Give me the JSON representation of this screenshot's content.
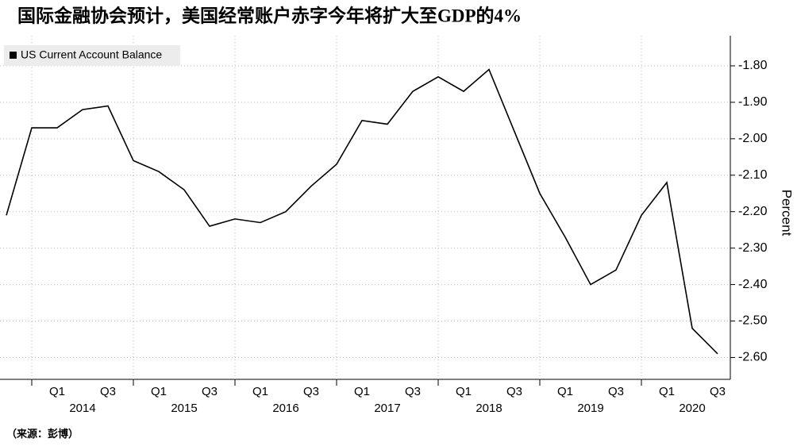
{
  "chart_data": {
    "type": "line",
    "title": "国际金融协会预计，美国经常账户赤字今年将扩大至GDP的4%",
    "source": "（来源：彭博）",
    "y_label": "Percent",
    "categories": [
      null,
      null,
      "Q1",
      null,
      "Q3",
      null,
      "Q1",
      null,
      "Q3",
      null,
      "Q1",
      null,
      "Q3",
      null,
      "Q1",
      null,
      "Q3",
      null,
      "Q1",
      null,
      "Q3",
      null,
      "Q1",
      null,
      "Q3",
      null,
      "Q1",
      null,
      "Q3"
    ],
    "years": [
      "2014",
      "2015",
      "2016",
      "2017",
      "2018",
      "2019",
      "2020"
    ],
    "series": [
      {
        "name": "US Current Account Balance",
        "color": "#000000",
        "values": [
          -2.21,
          -1.97,
          -1.97,
          -1.92,
          -1.91,
          -2.06,
          -2.09,
          -2.14,
          -2.24,
          -2.22,
          -2.23,
          -2.2,
          -2.13,
          -2.07,
          -1.95,
          -1.96,
          -1.87,
          -1.83,
          -1.87,
          -1.81,
          -1.98,
          -2.15,
          -2.27,
          -2.4,
          -2.36,
          -2.21,
          -2.12,
          -2.52,
          -2.59
        ]
      }
    ],
    "ylim": [
      -2.66,
      -1.75
    ],
    "yticks": [
      {
        "value": -1.8,
        "label": "-1.80"
      },
      {
        "value": -1.9,
        "label": "-1.90"
      },
      {
        "value": -2.0,
        "label": "-2.00"
      },
      {
        "value": -2.1,
        "label": "-2.10"
      },
      {
        "value": -2.2,
        "label": "-2.20"
      },
      {
        "value": -2.3,
        "label": "-2.30"
      },
      {
        "value": -2.4,
        "label": "-2.40"
      },
      {
        "value": -2.5,
        "label": "-2.50"
      },
      {
        "value": -2.6,
        "label": "-2.60"
      }
    ],
    "grid": true,
    "legend": "top-left"
  }
}
